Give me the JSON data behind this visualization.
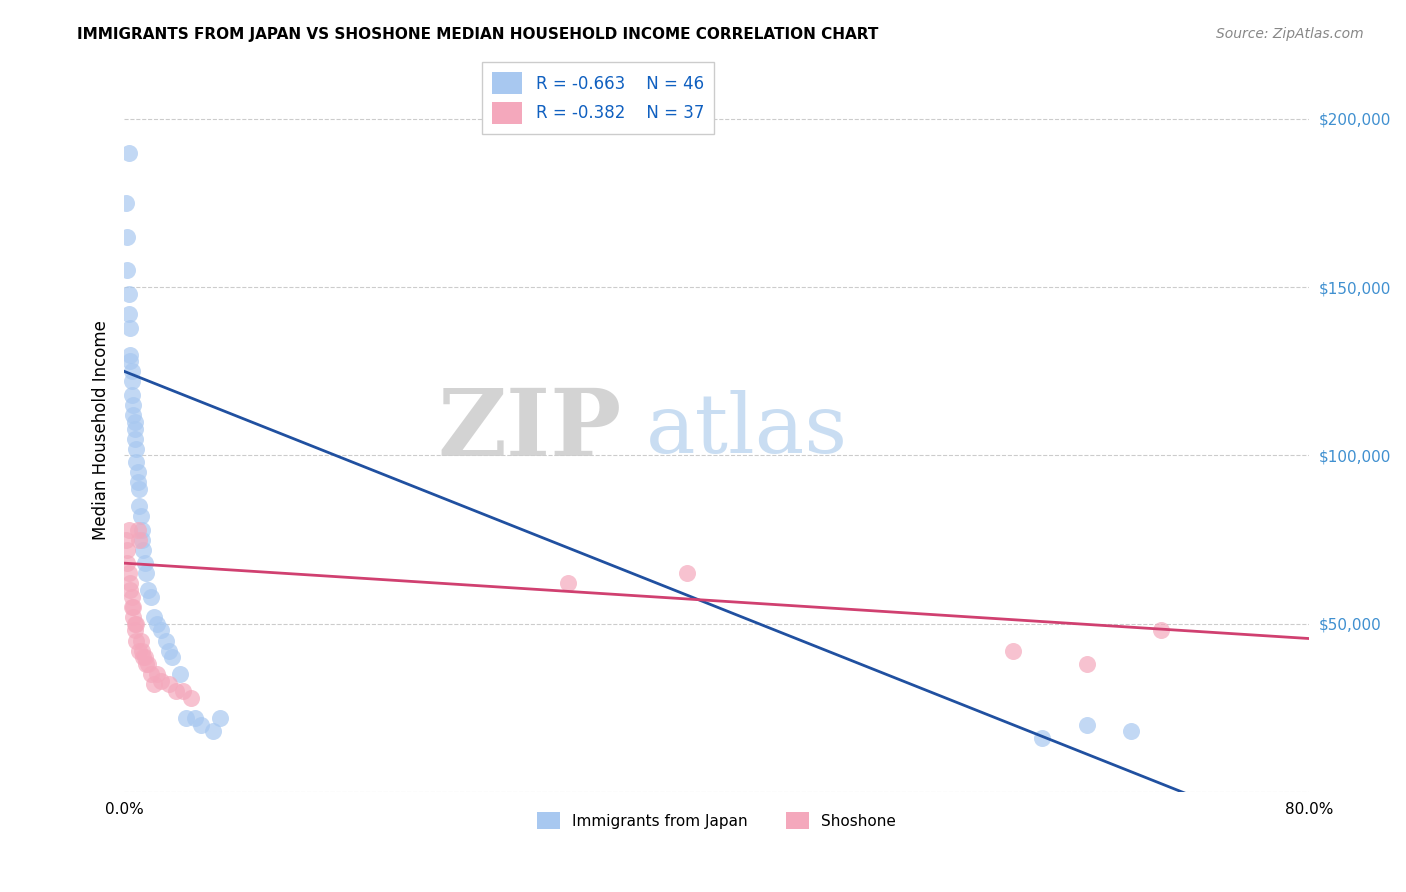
{
  "title": "IMMIGRANTS FROM JAPAN VS SHOSHONE MEDIAN HOUSEHOLD INCOME CORRELATION CHART",
  "source": "Source: ZipAtlas.com",
  "ylabel": "Median Household Income",
  "ylim": [
    0,
    215000
  ],
  "xlim": [
    0.0,
    0.8
  ],
  "yticks": [
    0,
    50000,
    100000,
    150000,
    200000
  ],
  "ytick_labels": [
    "",
    "$50,000",
    "$100,000",
    "$150,000",
    "$200,000"
  ],
  "legend1_r": "R = -0.663",
  "legend1_n": "N = 46",
  "legend2_r": "R = -0.382",
  "legend2_n": "N = 37",
  "legend_label1": "Immigrants from Japan",
  "legend_label2": "Shoshone",
  "blue_color": "#A8C8F0",
  "pink_color": "#F4A8BC",
  "trendline_blue": "#2050A0",
  "trendline_pink": "#D04070",
  "blue_intercept": 125000,
  "blue_slope": -175000,
  "pink_intercept": 68000,
  "pink_slope": -28000,
  "japan_x": [
    0.001,
    0.002,
    0.002,
    0.003,
    0.003,
    0.003,
    0.004,
    0.004,
    0.004,
    0.005,
    0.005,
    0.005,
    0.006,
    0.006,
    0.007,
    0.007,
    0.007,
    0.008,
    0.008,
    0.009,
    0.009,
    0.01,
    0.01,
    0.011,
    0.012,
    0.012,
    0.013,
    0.014,
    0.015,
    0.016,
    0.018,
    0.02,
    0.022,
    0.025,
    0.028,
    0.03,
    0.032,
    0.038,
    0.042,
    0.048,
    0.052,
    0.06,
    0.065,
    0.62,
    0.65,
    0.68
  ],
  "japan_y": [
    175000,
    165000,
    155000,
    148000,
    142000,
    190000,
    138000,
    130000,
    128000,
    125000,
    122000,
    118000,
    115000,
    112000,
    110000,
    108000,
    105000,
    102000,
    98000,
    95000,
    92000,
    90000,
    85000,
    82000,
    78000,
    75000,
    72000,
    68000,
    65000,
    60000,
    58000,
    52000,
    50000,
    48000,
    45000,
    42000,
    40000,
    35000,
    22000,
    22000,
    20000,
    18000,
    22000,
    16000,
    20000,
    18000
  ],
  "shoshone_x": [
    0.001,
    0.002,
    0.002,
    0.003,
    0.003,
    0.004,
    0.004,
    0.005,
    0.005,
    0.006,
    0.006,
    0.007,
    0.007,
    0.008,
    0.008,
    0.009,
    0.01,
    0.01,
    0.011,
    0.012,
    0.013,
    0.014,
    0.015,
    0.016,
    0.018,
    0.02,
    0.022,
    0.025,
    0.03,
    0.035,
    0.04,
    0.045,
    0.3,
    0.38,
    0.6,
    0.65,
    0.7
  ],
  "shoshone_y": [
    75000,
    72000,
    68000,
    65000,
    78000,
    62000,
    60000,
    58000,
    55000,
    55000,
    52000,
    50000,
    48000,
    50000,
    45000,
    78000,
    75000,
    42000,
    45000,
    42000,
    40000,
    40000,
    38000,
    38000,
    35000,
    32000,
    35000,
    33000,
    32000,
    30000,
    30000,
    28000,
    62000,
    65000,
    42000,
    38000,
    48000
  ],
  "watermark_zip": "ZIP",
  "watermark_atlas": "atlas",
  "watermark_zip_color": "#CCCCCC",
  "watermark_atlas_color": "#C0D8F0",
  "background_color": "#FFFFFF",
  "grid_color": "#CCCCCC"
}
